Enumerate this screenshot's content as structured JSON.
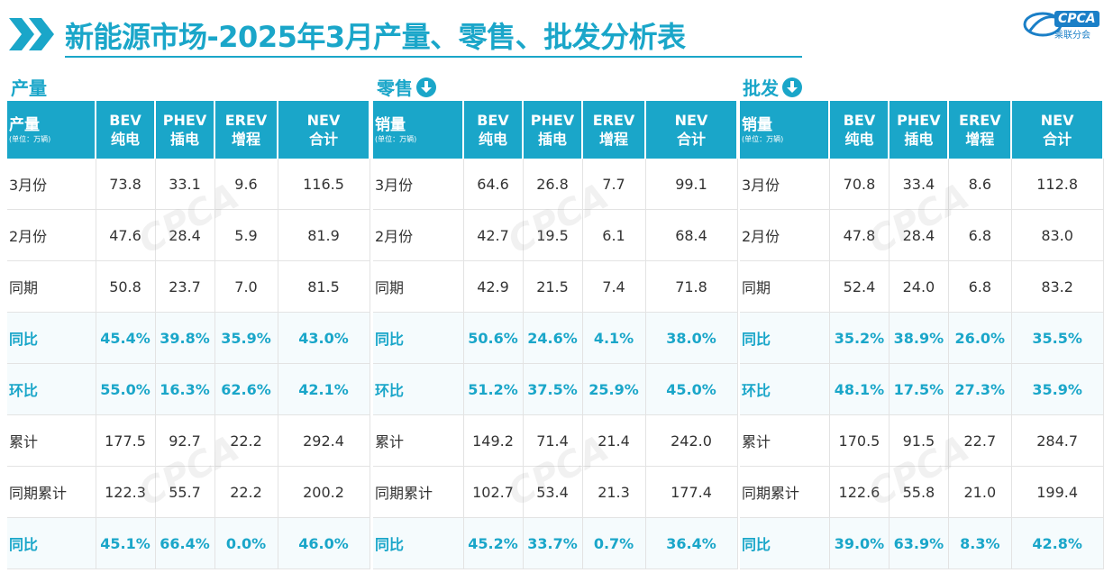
{
  "header": {
    "title": "新能源市场-2025年3月产量、零售、批发分析表",
    "logo_text": "CPCA",
    "logo_sub": "乘联分会",
    "accent_color": "#1aa6c9"
  },
  "sections": [
    {
      "label": "产量",
      "has_icon": false,
      "corner_title": "产量",
      "unit": "(单位：万辆)",
      "columns": [
        {
          "l1": "BEV",
          "l2": "纯电"
        },
        {
          "l1": "PHEV",
          "l2": "插电"
        },
        {
          "l1": "EREV",
          "l2": "增程"
        },
        {
          "l1": "NEV",
          "l2": "合计"
        }
      ],
      "rows": [
        {
          "label": "3月份",
          "values": [
            "73.8",
            "33.1",
            "9.6",
            "116.5"
          ]
        },
        {
          "label": "2月份",
          "values": [
            "47.6",
            "28.4",
            "5.9",
            "81.9"
          ]
        },
        {
          "label": "同期",
          "values": [
            "50.8",
            "23.7",
            "7.0",
            "81.5"
          ]
        },
        {
          "label": "同比",
          "values": [
            "45.4%",
            "39.8%",
            "35.9%",
            "43.0%"
          ]
        },
        {
          "label": "环比",
          "values": [
            "55.0%",
            "16.3%",
            "62.6%",
            "42.1%"
          ]
        },
        {
          "label": "累计",
          "values": [
            "177.5",
            "92.7",
            "22.2",
            "292.4"
          ]
        },
        {
          "label": "同期累计",
          "values": [
            "122.3",
            "55.7",
            "22.2",
            "200.2"
          ]
        },
        {
          "label": "同比",
          "values": [
            "45.1%",
            "66.4%",
            "0.0%",
            "46.0%"
          ]
        }
      ]
    },
    {
      "label": "零售",
      "has_icon": true,
      "corner_title": "销量",
      "unit": "(单位：万辆)",
      "columns": [
        {
          "l1": "BEV",
          "l2": "纯电"
        },
        {
          "l1": "PHEV",
          "l2": "插电"
        },
        {
          "l1": "EREV",
          "l2": "增程"
        },
        {
          "l1": "NEV",
          "l2": "合计"
        }
      ],
      "rows": [
        {
          "label": "3月份",
          "values": [
            "64.6",
            "26.8",
            "7.7",
            "99.1"
          ]
        },
        {
          "label": "2月份",
          "values": [
            "42.7",
            "19.5",
            "6.1",
            "68.4"
          ]
        },
        {
          "label": "同期",
          "values": [
            "42.9",
            "21.5",
            "7.4",
            "71.8"
          ]
        },
        {
          "label": "同比",
          "values": [
            "50.6%",
            "24.6%",
            "4.1%",
            "38.0%"
          ]
        },
        {
          "label": "环比",
          "values": [
            "51.2%",
            "37.5%",
            "25.9%",
            "45.0%"
          ]
        },
        {
          "label": "累计",
          "values": [
            "149.2",
            "71.4",
            "21.4",
            "242.0"
          ]
        },
        {
          "label": "同期累计",
          "values": [
            "102.7",
            "53.4",
            "21.3",
            "177.4"
          ]
        },
        {
          "label": "同比",
          "values": [
            "45.2%",
            "33.7%",
            "0.7%",
            "36.4%"
          ]
        }
      ]
    },
    {
      "label": "批发",
      "has_icon": true,
      "corner_title": "销量",
      "unit": "(单位：万辆)",
      "columns": [
        {
          "l1": "BEV",
          "l2": "纯电"
        },
        {
          "l1": "PHEV",
          "l2": "插电"
        },
        {
          "l1": "EREV",
          "l2": "增程"
        },
        {
          "l1": "NEV",
          "l2": "合计"
        }
      ],
      "rows": [
        {
          "label": "3月份",
          "values": [
            "70.8",
            "33.4",
            "8.6",
            "112.8"
          ]
        },
        {
          "label": "2月份",
          "values": [
            "47.8",
            "28.4",
            "6.8",
            "83.0"
          ]
        },
        {
          "label": "同期",
          "values": [
            "52.4",
            "24.0",
            "6.8",
            "83.2"
          ]
        },
        {
          "label": "同比",
          "values": [
            "35.2%",
            "38.9%",
            "26.0%",
            "35.5%"
          ]
        },
        {
          "label": "环比",
          "values": [
            "48.1%",
            "17.5%",
            "27.3%",
            "35.9%"
          ]
        },
        {
          "label": "累计",
          "values": [
            "170.5",
            "91.5",
            "22.7",
            "284.7"
          ]
        },
        {
          "label": "同期累计",
          "values": [
            "122.6",
            "55.8",
            "21.0",
            "199.4"
          ]
        },
        {
          "label": "同比",
          "values": [
            "39.0%",
            "63.9%",
            "8.3%",
            "42.8%"
          ]
        }
      ]
    }
  ],
  "highlight_rows": [
    3,
    4,
    7
  ]
}
